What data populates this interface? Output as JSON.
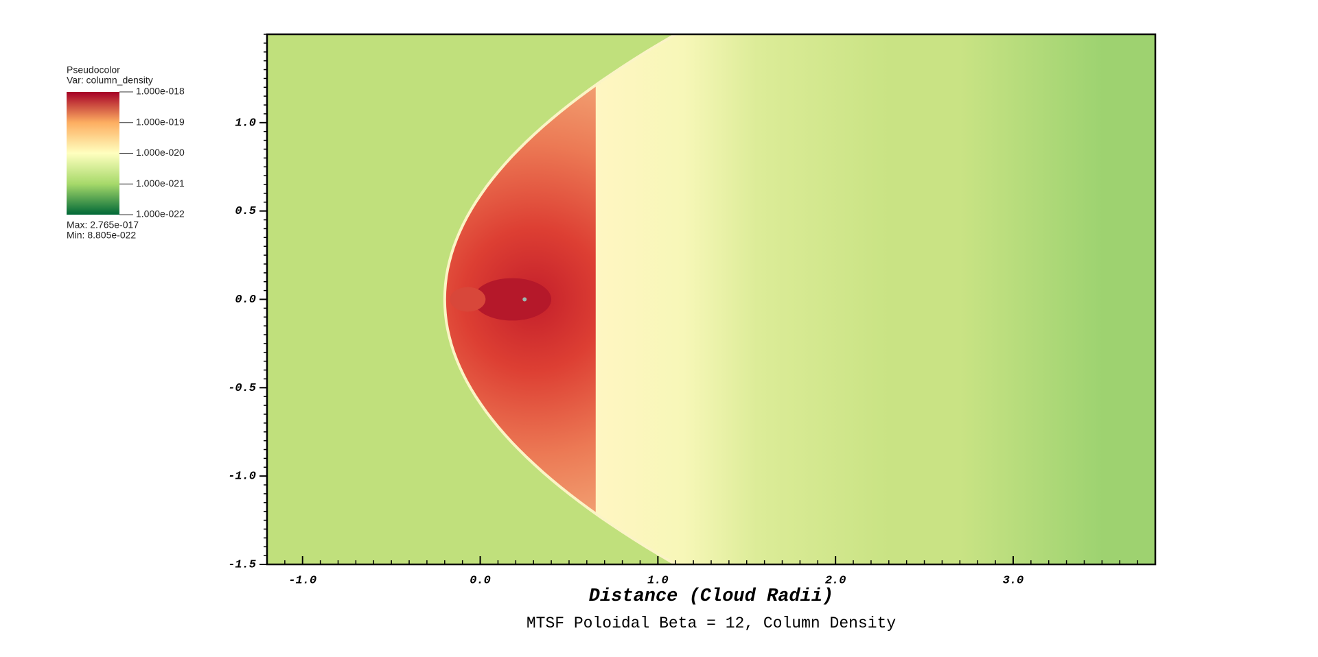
{
  "chart_data": {
    "type": "heatmap",
    "title": "MTSF Poloidal Beta = 12, Column Density",
    "xlabel": "Distance (Cloud Radii)",
    "xlim": [
      -1.2,
      3.8
    ],
    "ylim": [
      -1.5,
      1.5
    ],
    "xticks": [
      {
        "value": -1,
        "label": "-1.0"
      },
      {
        "value": 0,
        "label": "0.0"
      },
      {
        "value": 1,
        "label": "1.0"
      },
      {
        "value": 2,
        "label": "2.0"
      },
      {
        "value": 3,
        "label": "3.0"
      }
    ],
    "yticks": [
      {
        "value": 1,
        "label": "1.0"
      },
      0.5,
      {
        "value": 0,
        "label": "0.0"
      },
      -0.5,
      {
        "value": -1,
        "label": "-1.0"
      },
      -1.5
    ],
    "legend": {
      "title": "Pseudocolor",
      "variable": "Var: column_density",
      "scale": "log",
      "lim": [
        1e-22,
        1e-18
      ],
      "colors": [
        "#006837",
        "#a6d96a",
        "#ffffbf",
        "#fdae61",
        "#a50026"
      ],
      "ticks": [
        {
          "value": 1e-18,
          "label": "1.000e-018"
        },
        {
          "value": 1e-19,
          "label": "1.000e-019"
        },
        {
          "value": 1e-20,
          "label": "1.000e-020"
        },
        {
          "value": 1e-21,
          "label": "1.000e-021"
        },
        {
          "value": 1e-22,
          "label": "1.000e-022"
        }
      ],
      "max": "Max:  2.765e-017",
      "min": "Min:  8.805e-022"
    }
  }
}
